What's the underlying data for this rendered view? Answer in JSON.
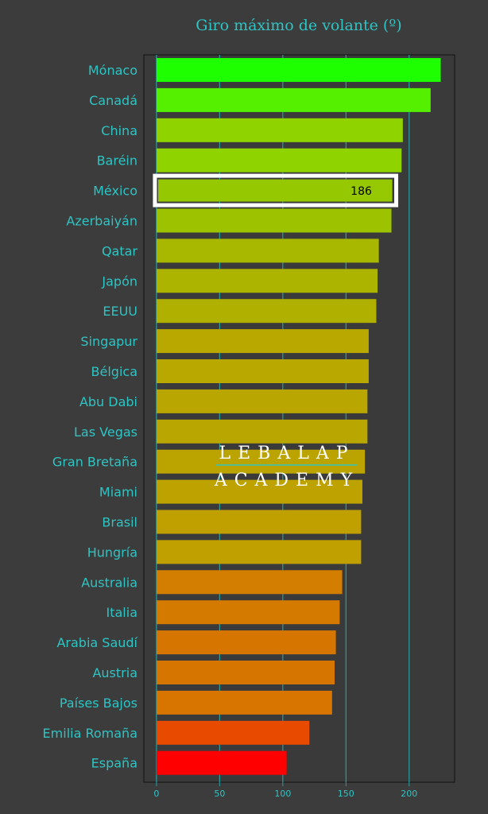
{
  "chart_data": {
    "type": "bar",
    "orientation": "horizontal",
    "title": "Giro máximo de volante (º)",
    "categories": [
      "Mónaco",
      "Canadá",
      "China",
      "Baréin",
      "México",
      "Azerbaiyán",
      "Qatar",
      "Japón",
      "EEUU",
      "Singapur",
      "Bélgica",
      "Abu Dabi",
      "Las Vegas",
      "Gran Bretaña",
      "Miami",
      "Brasil",
      "Hungría",
      "Australia",
      "Italia",
      "Arabia Saudí",
      "Austria",
      "Países Bajos",
      "Emilia Romaña",
      "España"
    ],
    "values": [
      225,
      217,
      195,
      194,
      186,
      186,
      176,
      175,
      174,
      168,
      168,
      167,
      167,
      165,
      163,
      162,
      162,
      147,
      145,
      142,
      141,
      139,
      121,
      103
    ],
    "colors": [
      "#1eff00",
      "#55f000",
      "#8fd400",
      "#8fd400",
      "#96c800",
      "#9cc200",
      "#a8b800",
      "#acb400",
      "#b0b000",
      "#b8a800",
      "#b8a800",
      "#baa600",
      "#baa600",
      "#bca400",
      "#bea200",
      "#c0a000",
      "#c0a000",
      "#d47e00",
      "#d47a00",
      "#d67600",
      "#d67600",
      "#d87400",
      "#e84a00",
      "#ff0000"
    ],
    "highlight": {
      "category": "México",
      "label": "186"
    },
    "xlim": [
      -10,
      236
    ],
    "xticks": [
      0,
      50,
      100,
      150,
      200
    ],
    "xlabel": "",
    "ylabel": "",
    "grid": "vertical",
    "watermark": {
      "line1": "LEBALAP",
      "line2": "ACADEMY"
    }
  },
  "style": {
    "background": "#3c3c3c",
    "plot_background": "#3a3a3a",
    "text_color": "#2ec4c4",
    "grid_color": "#2a9d9d",
    "highlight_label_color": "#000000",
    "highlight_border_color": "#ffffff",
    "watermark_color": "#ffffff",
    "watermark_rule_color": "#2ec4c4"
  }
}
